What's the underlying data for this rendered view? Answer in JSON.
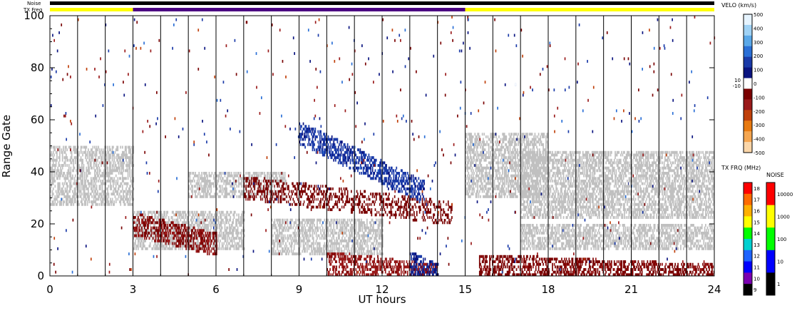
{
  "chart_data": {
    "type": "heatmap",
    "title": "",
    "xlabel": "UT hours",
    "ylabel": "Range Gate",
    "xlim": [
      0,
      24
    ],
    "ylim": [
      0,
      100
    ],
    "x_ticks": [
      "0",
      "3",
      "6",
      "9",
      "12",
      "15",
      "18",
      "21",
      "24"
    ],
    "y_ticks": [
      "0",
      "20",
      "40",
      "60",
      "80",
      "100"
    ],
    "top_bars": [
      {
        "label": "Noise",
        "segments": [
          {
            "from": 0,
            "to": 24,
            "color": "#000000"
          }
        ]
      },
      {
        "label": "TX Freq",
        "segments": [
          {
            "from": 0,
            "to": 3,
            "color": "#ffff00"
          },
          {
            "from": 3,
            "to": 15,
            "color": "#4b0082"
          },
          {
            "from": 15,
            "to": 24,
            "color": "#ffff00"
          }
        ]
      }
    ],
    "scan_boundaries_ut": [
      1,
      2,
      3,
      4,
      5,
      6,
      7,
      8,
      9,
      10,
      11,
      12,
      13,
      14,
      15,
      16,
      17,
      18,
      19,
      20,
      21,
      22,
      23
    ],
    "ground_scatter_color": "#c0c0c0",
    "ground_scatter_bands": [
      {
        "t0": 0.0,
        "t1": 3.0,
        "g0": 27,
        "g1": 50
      },
      {
        "t0": 3.0,
        "t1": 7.0,
        "g0": 10,
        "g1": 25
      },
      {
        "t0": 5.0,
        "t1": 8.5,
        "g0": 30,
        "g1": 40
      },
      {
        "t0": 8.0,
        "t1": 12.0,
        "g0": 8,
        "g1": 22
      },
      {
        "t0": 15.0,
        "t1": 18.0,
        "g0": 30,
        "g1": 55
      },
      {
        "t0": 17.0,
        "t1": 24.0,
        "g0": 22,
        "g1": 48
      },
      {
        "t0": 17.0,
        "t1": 24.0,
        "g0": 10,
        "g1": 20
      }
    ],
    "ionospheric_features": [
      {
        "t0": 7.0,
        "t1": 14.5,
        "g0": 34,
        "g1": 24,
        "v": -60
      },
      {
        "t0": 9.0,
        "t1": 13.5,
        "g0": 55,
        "g1": 32,
        "v": 150
      },
      {
        "t0": 10.0,
        "t1": 14.0,
        "g0": 5,
        "g1": 0,
        "v": -150
      },
      {
        "t0": 13.0,
        "t1": 14.0,
        "g0": 5,
        "g1": 0,
        "v": 120
      },
      {
        "t0": 3.0,
        "t1": 6.0,
        "g0": 20,
        "g1": 12,
        "v": -120
      },
      {
        "t0": 15.5,
        "t1": 24.0,
        "g0": 4,
        "g1": 0,
        "v": -100
      }
    ],
    "velocity_scale": {
      "title": "VELO (km/s)",
      "ticks": [
        "500",
        "400",
        "300",
        "200",
        "100",
        "0",
        "-100",
        "-200",
        "-300",
        "-400",
        "-500"
      ],
      "side_labels": [
        "10",
        "-10"
      ],
      "colors": [
        "#e6f4ff",
        "#9fd2f5",
        "#5aa8e8",
        "#2a6fd6",
        "#1a3aa8",
        "#0a1480",
        "#ffffff",
        "#7a0000",
        "#9a1a1a",
        "#c0400a",
        "#e87a10",
        "#f5a650",
        "#fbd6a8"
      ]
    },
    "txfreq_scale": {
      "title": "TX FRQ (MHz)",
      "ticks": [
        "18",
        "17",
        "16",
        "15",
        "14",
        "13",
        "12",
        "11",
        "10",
        "9"
      ],
      "colors": [
        "#ff0000",
        "#ff6a00",
        "#ffb000",
        "#ffff00",
        "#00ff00",
        "#00d0d0",
        "#1e64ff",
        "#0000ff",
        "#7a00b0",
        "#000000"
      ]
    },
    "noise_scale": {
      "title": "NOISE",
      "ticks": [
        "10000",
        "1000",
        "100",
        "10",
        "1"
      ],
      "colors": [
        "#ff0000",
        "#ffff00",
        "#00ff00",
        "#0000ff",
        "#000000"
      ]
    }
  }
}
